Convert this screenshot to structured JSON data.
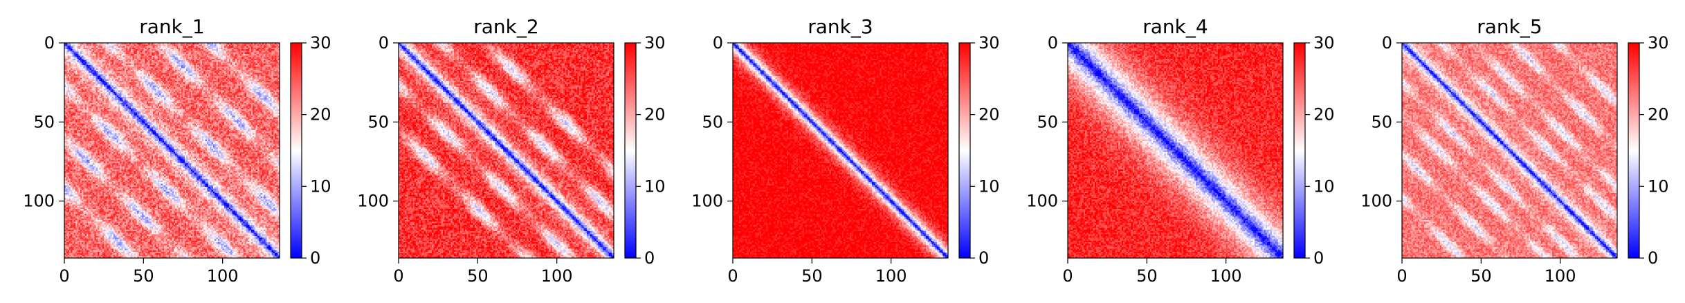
{
  "chart_data": [
    {
      "type": "heatmap",
      "title": "rank_1",
      "xlabel": "",
      "ylabel": "",
      "n": 136,
      "xticks": [
        0,
        50,
        100
      ],
      "yticks": [
        0,
        50,
        100
      ],
      "xlim": [
        0,
        136
      ],
      "ylim": [
        136,
        0
      ],
      "colorbar": {
        "min": 0,
        "max": 30,
        "ticks": [
          0,
          10,
          20,
          30
        ],
        "colors": [
          "#0000ff",
          "#ffffff",
          "#ff0000"
        ]
      },
      "pattern": {
        "diag_width": 5,
        "band_offsets": [
          28,
          60,
          92
        ],
        "band_depth": 14,
        "band_width": 4,
        "noise": 4.5,
        "base": 24
      }
    },
    {
      "type": "heatmap",
      "title": "rank_2",
      "xlabel": "",
      "ylabel": "",
      "n": 136,
      "xticks": [
        0,
        50,
        100
      ],
      "yticks": [
        0,
        50,
        100
      ],
      "xlim": [
        0,
        136
      ],
      "ylim": [
        136,
        0
      ],
      "colorbar": {
        "min": 0,
        "max": 30,
        "ticks": [
          0,
          10,
          20,
          30
        ],
        "colors": [
          "#0000ff",
          "#ffffff",
          "#ff0000"
        ]
      },
      "pattern": {
        "diag_width": 5,
        "band_offsets": [
          27,
          55
        ],
        "band_depth": 14,
        "band_width": 4,
        "noise": 4.0,
        "base": 27
      }
    },
    {
      "type": "heatmap",
      "title": "rank_3",
      "xlabel": "",
      "ylabel": "",
      "n": 136,
      "xticks": [
        0,
        50,
        100
      ],
      "yticks": [
        0,
        50,
        100
      ],
      "xlim": [
        0,
        136
      ],
      "ylim": [
        136,
        0
      ],
      "colorbar": {
        "min": 0,
        "max": 30,
        "ticks": [
          0,
          10,
          20,
          30
        ],
        "colors": [
          "#0000ff",
          "#ffffff",
          "#ff0000"
        ]
      },
      "pattern": {
        "diag_width": 5,
        "band_offsets": [],
        "band_depth": 0,
        "band_width": 4,
        "noise": 3.0,
        "base": 30
      }
    },
    {
      "type": "heatmap",
      "title": "rank_4",
      "xlabel": "",
      "ylabel": "",
      "n": 136,
      "xticks": [
        0,
        50,
        100
      ],
      "yticks": [
        0,
        50,
        100
      ],
      "xlim": [
        0,
        136
      ],
      "ylim": [
        136,
        0
      ],
      "colorbar": {
        "min": 0,
        "max": 30,
        "ticks": [
          0,
          10,
          20,
          30
        ],
        "colors": [
          "#0000ff",
          "#ffffff",
          "#ff0000"
        ]
      },
      "pattern": {
        "diag_width": 14,
        "band_offsets": [],
        "band_depth": 0,
        "band_width": 4,
        "noise": 3.5,
        "base": 28
      }
    },
    {
      "type": "heatmap",
      "title": "rank_5",
      "xlabel": "",
      "ylabel": "",
      "n": 136,
      "xticks": [
        0,
        50,
        100
      ],
      "yticks": [
        0,
        50,
        100
      ],
      "xlim": [
        0,
        136
      ],
      "ylim": [
        136,
        0
      ],
      "colorbar": {
        "min": 0,
        "max": 30,
        "ticks": [
          0,
          10,
          20,
          30
        ],
        "colors": [
          "#0000ff",
          "#ffffff",
          "#ff0000"
        ]
      },
      "pattern": {
        "diag_width": 4,
        "band_offsets": [
          25,
          45,
          70,
          98
        ],
        "band_depth": 10,
        "band_width": 3,
        "noise": 3.5,
        "base": 23
      }
    }
  ]
}
